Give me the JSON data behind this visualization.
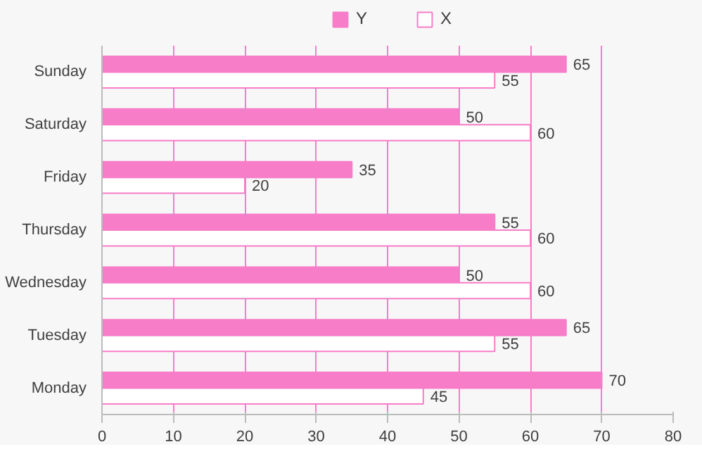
{
  "chart_data": {
    "type": "bar",
    "orientation": "horizontal",
    "categories": [
      "Sunday",
      "Saturday",
      "Friday",
      "Thursday",
      "Wednesday",
      "Tuesday",
      "Monday"
    ],
    "series": [
      {
        "name": "Y",
        "color": "#f77dc8",
        "values": [
          65,
          50,
          35,
          55,
          50,
          65,
          70
        ]
      },
      {
        "name": "X",
        "color": "#ffffff",
        "values": [
          55,
          60,
          20,
          60,
          60,
          55,
          45
        ]
      }
    ],
    "xlim": [
      0,
      80
    ],
    "xticks": [
      0,
      10,
      20,
      30,
      40,
      50,
      60,
      70,
      80
    ],
    "grid": "x",
    "legend": "top",
    "data_labels": true
  }
}
